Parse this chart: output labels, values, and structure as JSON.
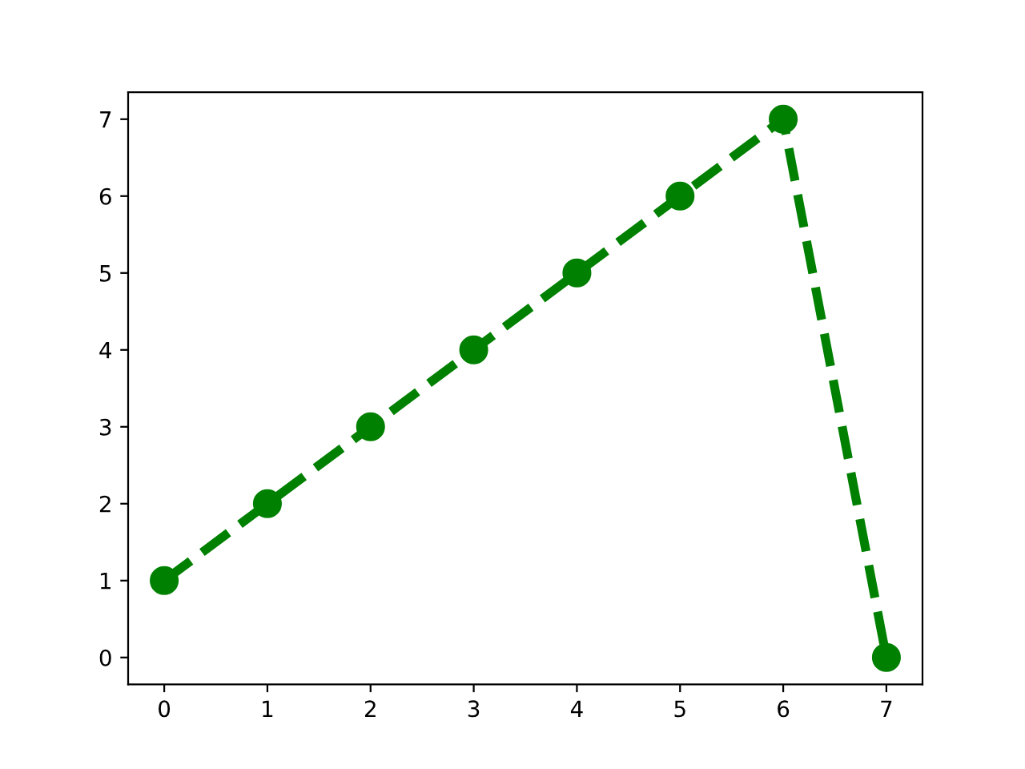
{
  "chart_data": {
    "type": "line",
    "x": [
      0,
      1,
      2,
      3,
      4,
      5,
      6,
      7
    ],
    "series": [
      {
        "color": "#008000",
        "values": [
          1,
          2,
          3,
          4,
          5,
          6,
          7,
          0
        ]
      }
    ],
    "xlim": [
      -0.35,
      7.35
    ],
    "ylim": [
      -0.35,
      7.35
    ],
    "xticks": [
      0,
      1,
      2,
      3,
      4,
      5,
      6,
      7
    ],
    "yticks": [
      0,
      1,
      2,
      3,
      4,
      5,
      6,
      7
    ],
    "marker": "circle",
    "line_style": "dashed",
    "grid": false,
    "legend": false
  }
}
